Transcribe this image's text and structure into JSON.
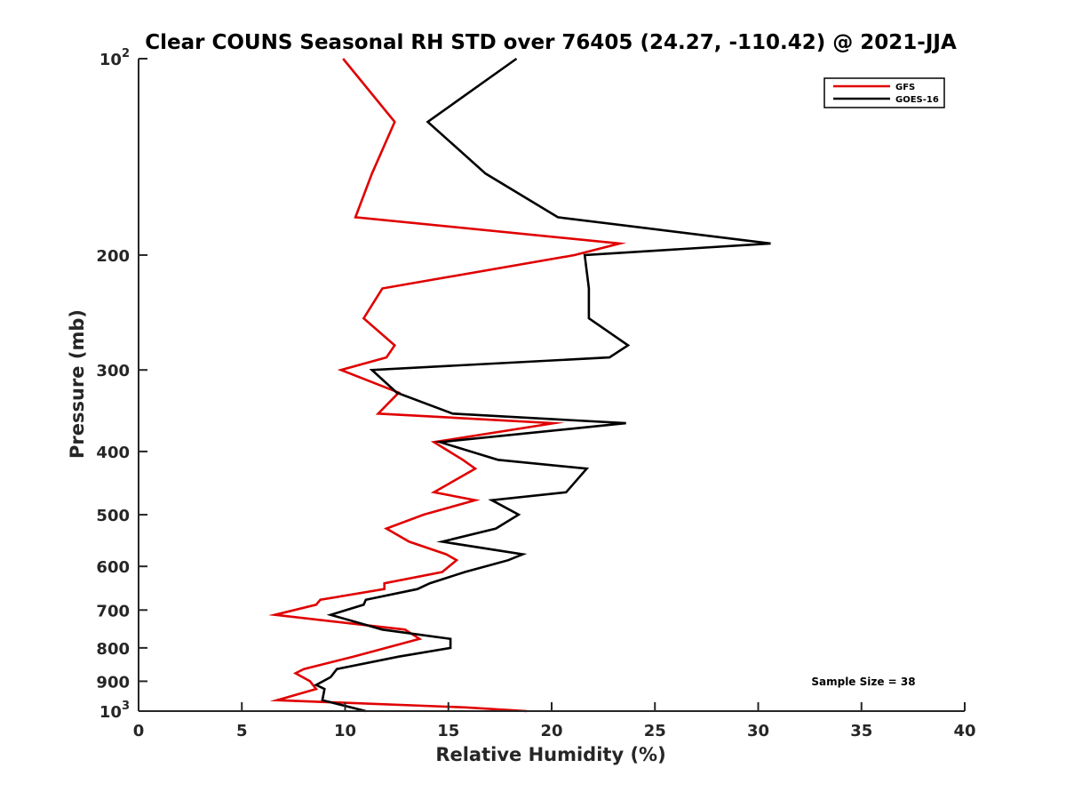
{
  "colors": {
    "gfs": "#e00000",
    "goes": "#000000",
    "axis": "#262626"
  },
  "chart_data": {
    "type": "line",
    "title": "Clear COUNS Seasonal RH STD over 76405 (24.27, -110.42) @ 2021-JJA",
    "xlabel": "Relative Humidity (%)",
    "ylabel": "Pressure (mb)",
    "xlim": [
      0,
      40
    ],
    "ylim": [
      100,
      1000
    ],
    "yscale": "log",
    "y_reversed": true,
    "grid": false,
    "legend_position": "top-right",
    "x_ticks": [
      0,
      5,
      10,
      15,
      20,
      25,
      30,
      35,
      40
    ],
    "x_tick_labels": [
      "0",
      "5",
      "10",
      "15",
      "20",
      "25",
      "30",
      "35",
      "40"
    ],
    "y_ticks": [
      {
        "value": 100,
        "base": "10",
        "exp": "2"
      },
      {
        "value": 200,
        "label": "200"
      },
      {
        "value": 300,
        "label": "300"
      },
      {
        "value": 400,
        "label": "400"
      },
      {
        "value": 500,
        "label": "500"
      },
      {
        "value": 600,
        "label": "600"
      },
      {
        "value": 700,
        "label": "700"
      },
      {
        "value": 800,
        "label": "800"
      },
      {
        "value": 900,
        "label": "900"
      },
      {
        "value": 1000,
        "base": "10",
        "exp": "3"
      }
    ],
    "annotation": "Sample Size = 38",
    "series": [
      {
        "name": "GFS",
        "color": "#e00000",
        "points": [
          [
            9.9,
            100
          ],
          [
            12.4,
            125
          ],
          [
            11.3,
            150
          ],
          [
            10.5,
            175
          ],
          [
            23.3,
            192
          ],
          [
            21.1,
            200
          ],
          [
            11.8,
            225
          ],
          [
            10.9,
            250
          ],
          [
            12.4,
            275
          ],
          [
            12.0,
            287
          ],
          [
            9.8,
            300
          ],
          [
            12.6,
            325
          ],
          [
            11.6,
            350
          ],
          [
            20.1,
            362
          ],
          [
            14.3,
            387
          ],
          [
            15.7,
            412
          ],
          [
            16.3,
            425
          ],
          [
            14.3,
            462
          ],
          [
            16.3,
            475
          ],
          [
            13.8,
            500
          ],
          [
            12.0,
            525
          ],
          [
            13.1,
            550
          ],
          [
            14.9,
            575
          ],
          [
            15.4,
            587
          ],
          [
            14.7,
            612
          ],
          [
            11.9,
            637
          ],
          [
            11.9,
            650
          ],
          [
            8.8,
            675
          ],
          [
            8.6,
            687
          ],
          [
            6.6,
            712
          ],
          [
            12.9,
            750
          ],
          [
            13.6,
            775
          ],
          [
            10.4,
            825
          ],
          [
            8.0,
            862
          ],
          [
            7.6,
            875
          ],
          [
            8.3,
            900
          ],
          [
            8.6,
            925
          ],
          [
            6.7,
            962
          ],
          [
            15.8,
            987
          ],
          [
            18.8,
            1000
          ]
        ]
      },
      {
        "name": "GOES-16",
        "color": "#000000",
        "points": [
          [
            18.3,
            100
          ],
          [
            14.0,
            125
          ],
          [
            16.8,
            150
          ],
          [
            20.3,
            175
          ],
          [
            30.6,
            192
          ],
          [
            21.6,
            200
          ],
          [
            21.8,
            225
          ],
          [
            21.8,
            250
          ],
          [
            23.7,
            275
          ],
          [
            22.8,
            287
          ],
          [
            11.3,
            300
          ],
          [
            12.5,
            325
          ],
          [
            15.2,
            350
          ],
          [
            23.6,
            362
          ],
          [
            14.6,
            387
          ],
          [
            17.4,
            412
          ],
          [
            21.7,
            425
          ],
          [
            20.7,
            462
          ],
          [
            17.1,
            475
          ],
          [
            18.4,
            500
          ],
          [
            17.3,
            525
          ],
          [
            14.7,
            550
          ],
          [
            18.6,
            575
          ],
          [
            17.9,
            587
          ],
          [
            15.8,
            612
          ],
          [
            14.1,
            637
          ],
          [
            13.5,
            650
          ],
          [
            11.0,
            675
          ],
          [
            10.9,
            687
          ],
          [
            9.3,
            712
          ],
          [
            11.8,
            750
          ],
          [
            15.1,
            775
          ],
          [
            15.1,
            800
          ],
          [
            12.6,
            825
          ],
          [
            9.6,
            862
          ],
          [
            9.3,
            887
          ],
          [
            8.6,
            912
          ],
          [
            9.0,
            925
          ],
          [
            8.9,
            962
          ],
          [
            11.0,
            1000
          ]
        ]
      }
    ]
  }
}
